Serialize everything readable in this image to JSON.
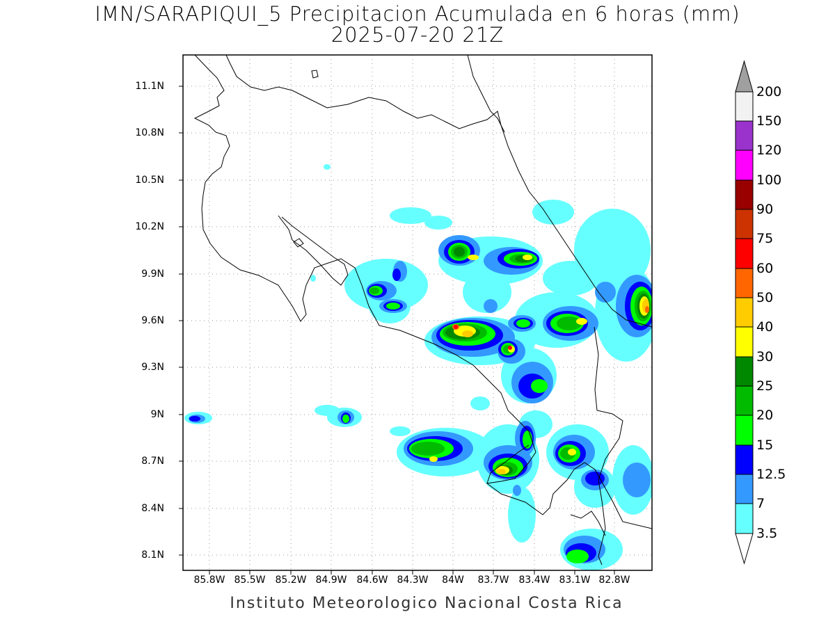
{
  "title_line1": "IMN/SARAPIQUI_5 Precipitacion Acumulada en 6 horas (mm)",
  "title_line2": "2025-07-20 21Z",
  "credit": "Instituto Meteorologico Nacional Costa Rica",
  "axes": {
    "lat_labels": [
      "11.1N",
      "10.8N",
      "10.5N",
      "10.2N",
      "9.9N",
      "9.6N",
      "9.3N",
      "9N",
      "8.7N",
      "8.4N",
      "8.1N"
    ],
    "lon_labels": [
      "85.8W",
      "85.5W",
      "85.2W",
      "84.9W",
      "84.6W",
      "84.3W",
      "84W",
      "83.7W",
      "83.4W",
      "83.1W",
      "82.8W"
    ]
  },
  "colorbar": {
    "labels": [
      "200",
      "150",
      "120",
      "100",
      "90",
      "75",
      "60",
      "50",
      "40",
      "30",
      "25",
      "20",
      "15",
      "12.5",
      "7",
      "3.5"
    ],
    "colors": [
      "#f2f2f2",
      "#9933cc",
      "#ff00ff",
      "#990000",
      "#cc3300",
      "#ff0000",
      "#ff6600",
      "#ffcc00",
      "#ffff00",
      "#008800",
      "#00bb00",
      "#00ff00",
      "#0000ff",
      "#3399ff",
      "#66ffff"
    ],
    "top_arrow_color": "#a0a0a0",
    "bottom_arrow_color": "#ffffff"
  },
  "precip_legend": {
    "cyan": "#66ffff",
    "blue": "#3399ff",
    "dark_blue": "#0000ff",
    "light_green": "#00ff00",
    "green": "#00bb00",
    "dark_green": "#008800",
    "yellow": "#ffff00",
    "gold": "#ffcc00",
    "orange": "#ff6600",
    "red": "#ff0000"
  }
}
